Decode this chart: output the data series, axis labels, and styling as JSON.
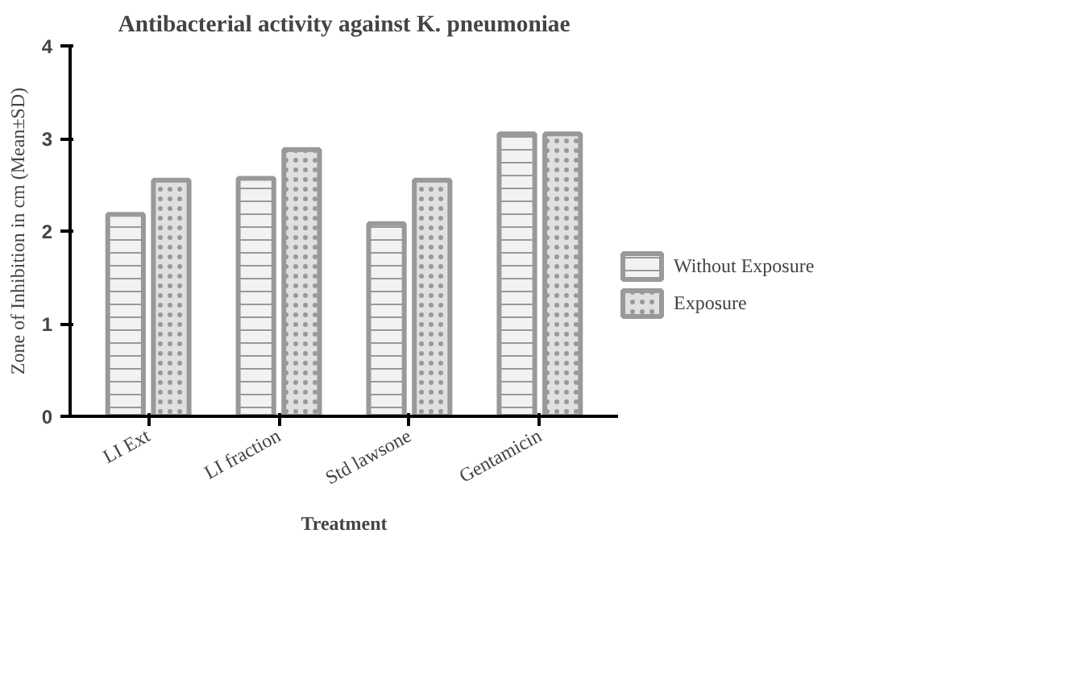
{
  "chart_data": {
    "type": "bar",
    "title": "Antibacterial activity against K. pneumoniae",
    "xlabel": "Treatment",
    "ylabel": "Zone of Inhibition in cm (Mean±SD)",
    "categories": [
      "LI Ext",
      "LI fraction",
      "Std lawsone",
      "Gentamicin"
    ],
    "series": [
      {
        "name": "Without Exposure",
        "color": "#f2f2f2",
        "values": [
          2.18,
          2.57,
          2.08,
          3.05
        ]
      },
      {
        "name": "Exposure",
        "color": "#e0e0e0",
        "values": [
          2.55,
          2.88,
          2.55,
          3.05
        ]
      }
    ],
    "ylim": [
      0,
      4
    ],
    "yticks": [
      0,
      1,
      2,
      3,
      4
    ],
    "grid": false,
    "legend": "right"
  }
}
